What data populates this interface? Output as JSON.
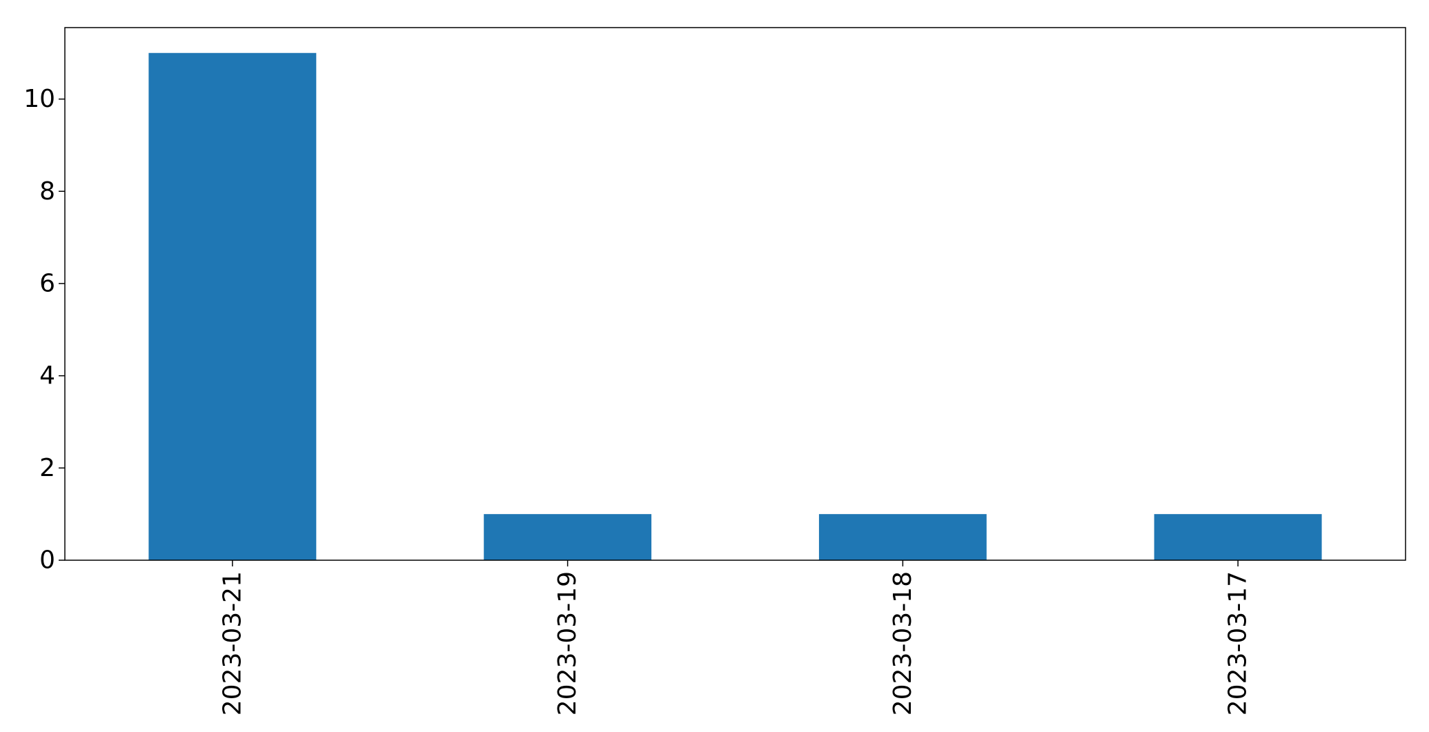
{
  "chart_data": {
    "type": "bar",
    "title": "",
    "xlabel": "",
    "ylabel": "",
    "categories": [
      "2023-03-21",
      "2023-03-19",
      "2023-03-18",
      "2023-03-17"
    ],
    "values": [
      11,
      1,
      1,
      1
    ],
    "ylim": [
      0,
      11.55
    ],
    "yticks": [
      0,
      2,
      4,
      6,
      8,
      10
    ],
    "grid": false,
    "legend": "none",
    "bar_color": "#1f77b4",
    "xtick_rotation": "vertical"
  }
}
